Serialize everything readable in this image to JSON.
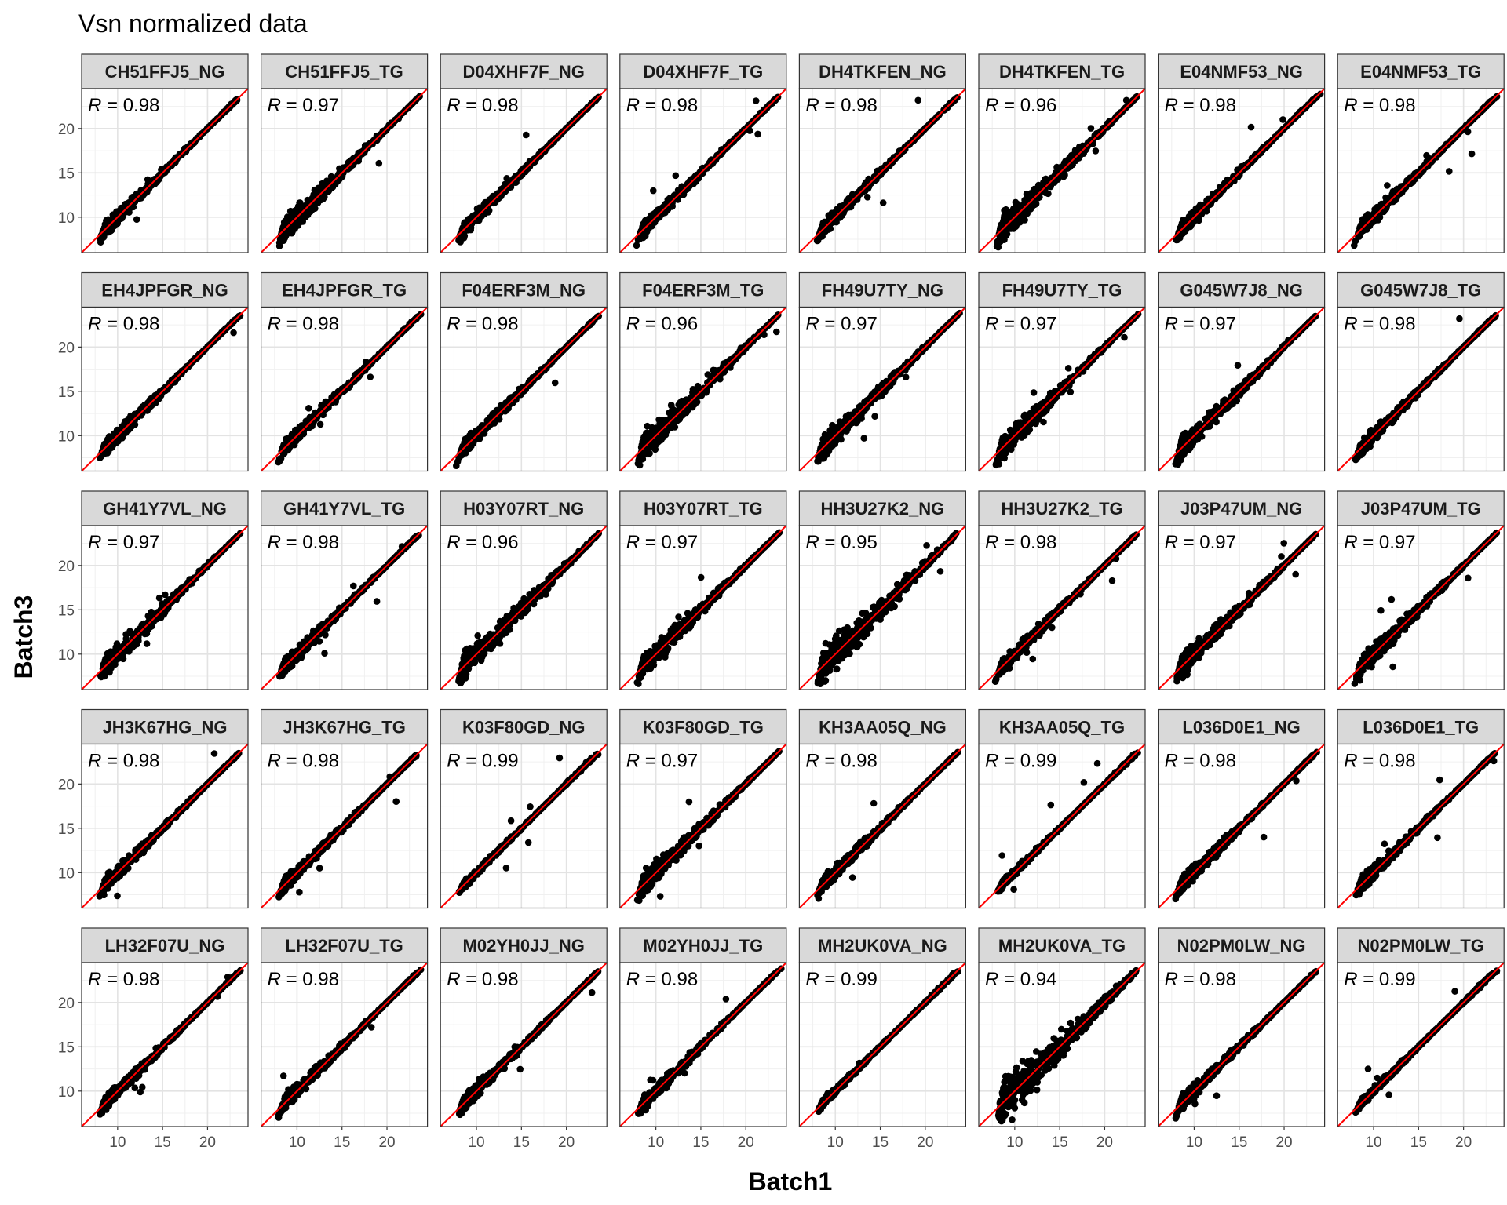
{
  "chart_data": {
    "type": "scatter",
    "title": "Vsn normalized data",
    "xlabel": "Batch1",
    "ylabel": "Batch3",
    "xlim": [
      6,
      24.5
    ],
    "ylim": [
      6,
      24.5
    ],
    "x_ticks": [
      10,
      15,
      20
    ],
    "y_ticks": [
      10,
      15,
      20
    ],
    "grid": true,
    "reference_line": {
      "slope": 1,
      "intercept": 0,
      "color": "#ff0000"
    },
    "point_color": "#000000",
    "facets_layout": {
      "rows": 5,
      "cols": 8
    },
    "facets": [
      {
        "label": "CH51FFJ5_NG",
        "r_text": "= 0.98",
        "r": 0.98
      },
      {
        "label": "CH51FFJ5_TG",
        "r_text": "= 0.97",
        "r": 0.97
      },
      {
        "label": "D04XHF7F_NG",
        "r_text": "= 0.98",
        "r": 0.98
      },
      {
        "label": "D04XHF7F_TG",
        "r_text": "= 0.98",
        "r": 0.98
      },
      {
        "label": "DH4TKFEN_NG",
        "r_text": "= 0.98",
        "r": 0.98
      },
      {
        "label": "DH4TKFEN_TG",
        "r_text": "= 0.96",
        "r": 0.96
      },
      {
        "label": "E04NMF53_NG",
        "r_text": "= 0.98",
        "r": 0.98
      },
      {
        "label": "E04NMF53_TG",
        "r_text": "= 0.98",
        "r": 0.98
      },
      {
        "label": "EH4JPFGR_NG",
        "r_text": "= 0.98",
        "r": 0.98
      },
      {
        "label": "EH4JPFGR_TG",
        "r_text": "= 0.98",
        "r": 0.98
      },
      {
        "label": "F04ERF3M_NG",
        "r_text": "= 0.98",
        "r": 0.98
      },
      {
        "label": "F04ERF3M_TG",
        "r_text": "= 0.96",
        "r": 0.96
      },
      {
        "label": "FH49U7TY_NG",
        "r_text": "= 0.97",
        "r": 0.97
      },
      {
        "label": "FH49U7TY_TG",
        "r_text": "= 0.97",
        "r": 0.97
      },
      {
        "label": "G045W7J8_NG",
        "r_text": "= 0.97",
        "r": 0.97
      },
      {
        "label": "G045W7J8_TG",
        "r_text": "= 0.98",
        "r": 0.98
      },
      {
        "label": "GH41Y7VL_NG",
        "r_text": "= 0.97",
        "r": 0.97
      },
      {
        "label": "GH41Y7VL_TG",
        "r_text": "= 0.98",
        "r": 0.98
      },
      {
        "label": "H03Y07RT_NG",
        "r_text": "= 0.96",
        "r": 0.96
      },
      {
        "label": "H03Y07RT_TG",
        "r_text": "= 0.97",
        "r": 0.97
      },
      {
        "label": "HH3U27K2_NG",
        "r_text": "= 0.95",
        "r": 0.95
      },
      {
        "label": "HH3U27K2_TG",
        "r_text": "= 0.98",
        "r": 0.98
      },
      {
        "label": "J03P47UM_NG",
        "r_text": "= 0.97",
        "r": 0.97
      },
      {
        "label": "J03P47UM_TG",
        "r_text": "= 0.97",
        "r": 0.97
      },
      {
        "label": "JH3K67HG_NG",
        "r_text": "= 0.98",
        "r": 0.98
      },
      {
        "label": "JH3K67HG_TG",
        "r_text": "= 0.98",
        "r": 0.98
      },
      {
        "label": "K03F80GD_NG",
        "r_text": "= 0.99",
        "r": 0.99
      },
      {
        "label": "K03F80GD_TG",
        "r_text": "= 0.97",
        "r": 0.97
      },
      {
        "label": "KH3AA05Q_NG",
        "r_text": "= 0.98",
        "r": 0.98
      },
      {
        "label": "KH3AA05Q_TG",
        "r_text": "= 0.99",
        "r": 0.99
      },
      {
        "label": "L036D0E1_NG",
        "r_text": "= 0.98",
        "r": 0.98
      },
      {
        "label": "L036D0E1_TG",
        "r_text": "= 0.98",
        "r": 0.98
      },
      {
        "label": "LH32F07U_NG",
        "r_text": "= 0.98",
        "r": 0.98
      },
      {
        "label": "LH32F07U_TG",
        "r_text": "= 0.98",
        "r": 0.98
      },
      {
        "label": "M02YH0JJ_NG",
        "r_text": "= 0.98",
        "r": 0.98
      },
      {
        "label": "M02YH0JJ_TG",
        "r_text": "= 0.98",
        "r": 0.98
      },
      {
        "label": "MH2UK0VA_NG",
        "r_text": "= 0.99",
        "r": 0.99
      },
      {
        "label": "MH2UK0VA_TG",
        "r_text": "= 0.94",
        "r": 0.94
      },
      {
        "label": "N02PM0LW_NG",
        "r_text": "= 0.98",
        "r": 0.98
      },
      {
        "label": "N02PM0LW_TG",
        "r_text": "= 0.99",
        "r": 0.99
      }
    ]
  }
}
